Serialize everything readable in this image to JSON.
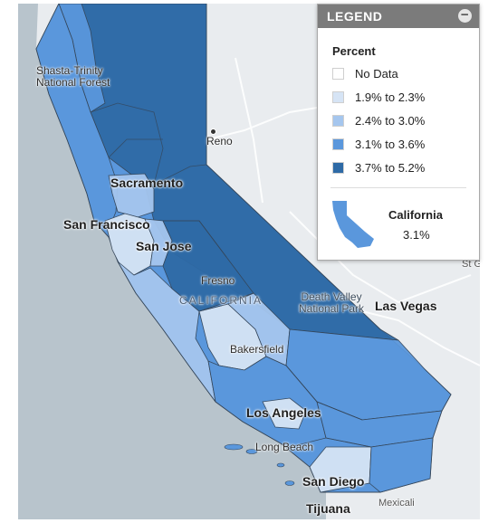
{
  "map": {
    "colors": {
      "water": "#b8c4cc",
      "land": "#e9ecef",
      "no_data": "#ffffff",
      "bin1": "#d6e4f5",
      "bin2": "#a5c6ee",
      "bin3": "#5a97dc",
      "bin4": "#2e6aa6"
    },
    "places": {
      "shasta": "Shasta-Trinity\nNational Forest",
      "reno": "Reno",
      "sacramento": "Sacramento",
      "san_francisco": "San Francisco",
      "san_jose": "San Jose",
      "fresno": "Fresno",
      "california": "CALIFORNIA",
      "death_valley": "Death Valley\nNational Park",
      "las_vegas": "Las Vegas",
      "bakersfield": "Bakersfield",
      "los_angeles": "Los Angeles",
      "long_beach": "Long Beach",
      "san_diego": "San Diego",
      "tijuana": "Tijuana",
      "mexicali": "Mexicali",
      "st_george": "St Geo"
    }
  },
  "legend": {
    "header": "LEGEND",
    "collapse_icon": "minus-circle-icon",
    "title": "Percent",
    "items": [
      {
        "label": "No Data",
        "color": "#ffffff"
      },
      {
        "label": "1.9% to 2.3%",
        "color": "#d6e4f5"
      },
      {
        "label": "2.4% to 3.0%",
        "color": "#a5c6ee"
      },
      {
        "label": "3.1% to 3.6%",
        "color": "#5a97dc"
      },
      {
        "label": "3.7% to 5.2%",
        "color": "#2e6aa6"
      }
    ],
    "summary": {
      "name": "California",
      "value": "3.1%",
      "color": "#5a97dc"
    }
  }
}
